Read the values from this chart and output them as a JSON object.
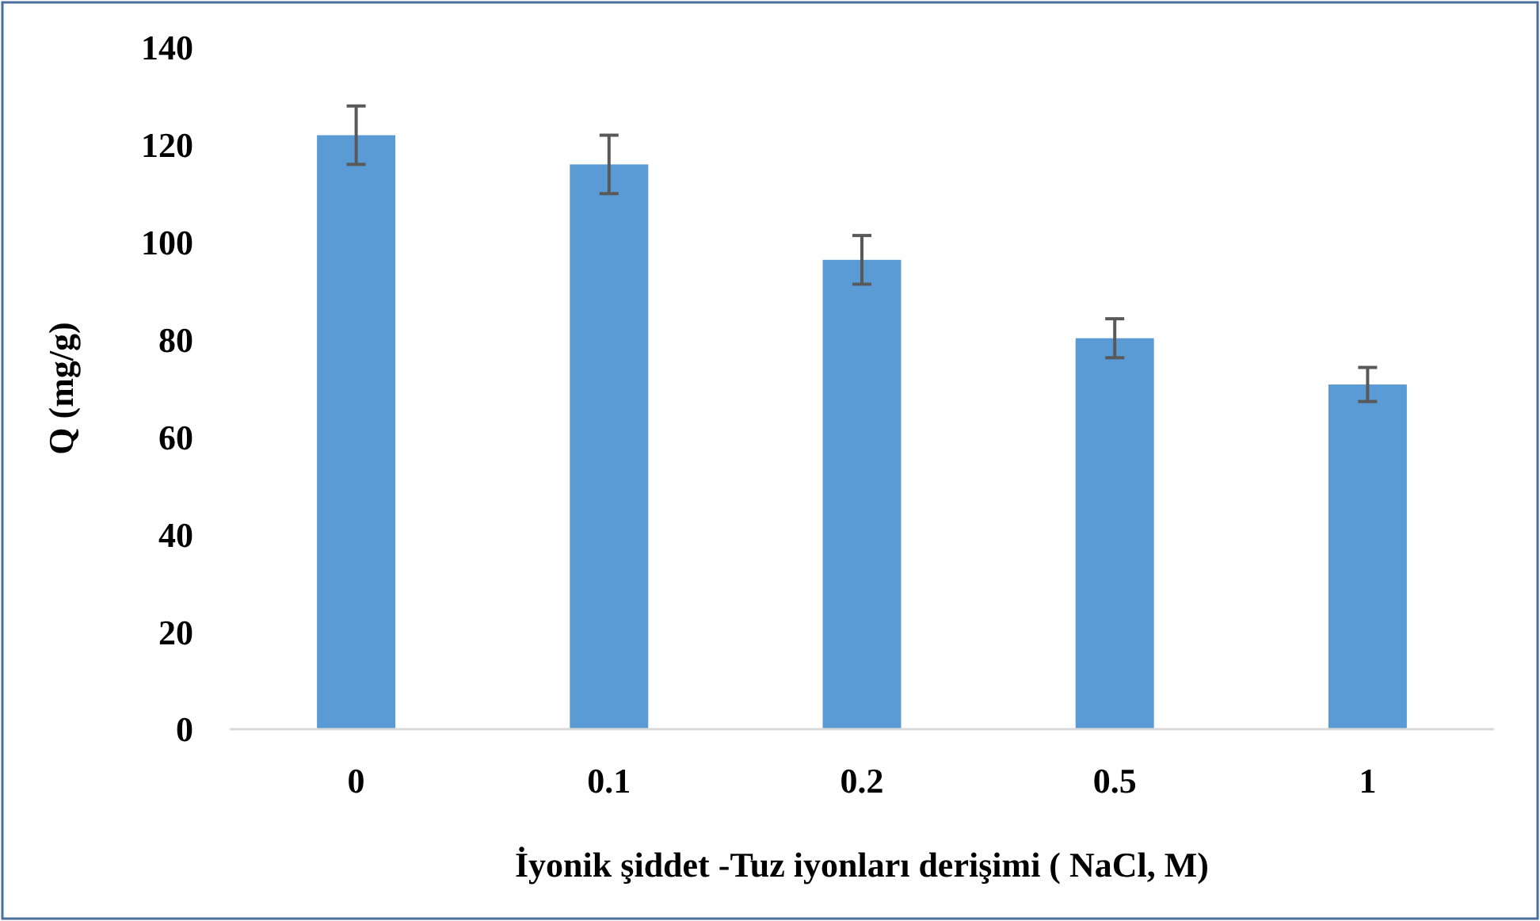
{
  "chart_data": {
    "type": "bar",
    "xlabel": "İyonik şiddet -Tuz iyonları derişimi ( NaCl, M)",
    "ylabel": "Q (mg/g)",
    "categories": [
      "0",
      "0.1",
      "0.2",
      "0.5",
      "1"
    ],
    "values": [
      122,
      116,
      96.4,
      80.3,
      70.8
    ],
    "errors": [
      6,
      6,
      5,
      4,
      3.5
    ],
    "color": "#5b9bd5",
    "ylim": [
      0,
      140
    ],
    "yticks": [
      0,
      20,
      40,
      60,
      80,
      100,
      120,
      140
    ],
    "grid": false
  }
}
